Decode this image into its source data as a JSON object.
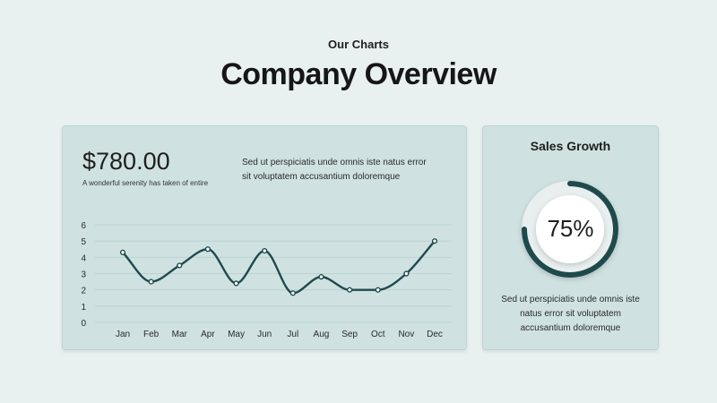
{
  "header": {
    "eyebrow": "Our Charts",
    "title": "Company Overview"
  },
  "overview_card": {
    "amount": "$780.00",
    "tagline": "A wonderful serenity has taken of entire",
    "description": "Sed ut perspiciatis unde omnis iste natus error sit voluptatem accusantium doloremque"
  },
  "sales_card": {
    "title": "Sales Growth",
    "percent_label": "75%",
    "percent_value": 0.75,
    "description": "Sed ut perspiciatis unde omnis iste natus error sit voluptatem accusantium doloremque"
  },
  "colors": {
    "background": "#e8f0f0",
    "card": "#cfe1e1",
    "line": "#1f4a4c",
    "grid": "#bcd2d2",
    "gauge_track": "#e9eeee"
  },
  "chart_data": {
    "type": "line",
    "title": "",
    "xlabel": "",
    "ylabel": "",
    "categories": [
      "Jan",
      "Feb",
      "Mar",
      "Apr",
      "May",
      "Jun",
      "Jul",
      "Aug",
      "Sep",
      "Oct",
      "Nov",
      "Dec"
    ],
    "series": [
      {
        "values": [
          4.3,
          2.5,
          3.5,
          4.5,
          2.4,
          4.4,
          1.8,
          2.8,
          2.0,
          2.0,
          3.0,
          5.0
        ]
      }
    ],
    "yticks": [
      0,
      1,
      2,
      3,
      4,
      5,
      6
    ],
    "ylim": [
      0,
      6
    ],
    "grid": true,
    "legend": "none"
  }
}
